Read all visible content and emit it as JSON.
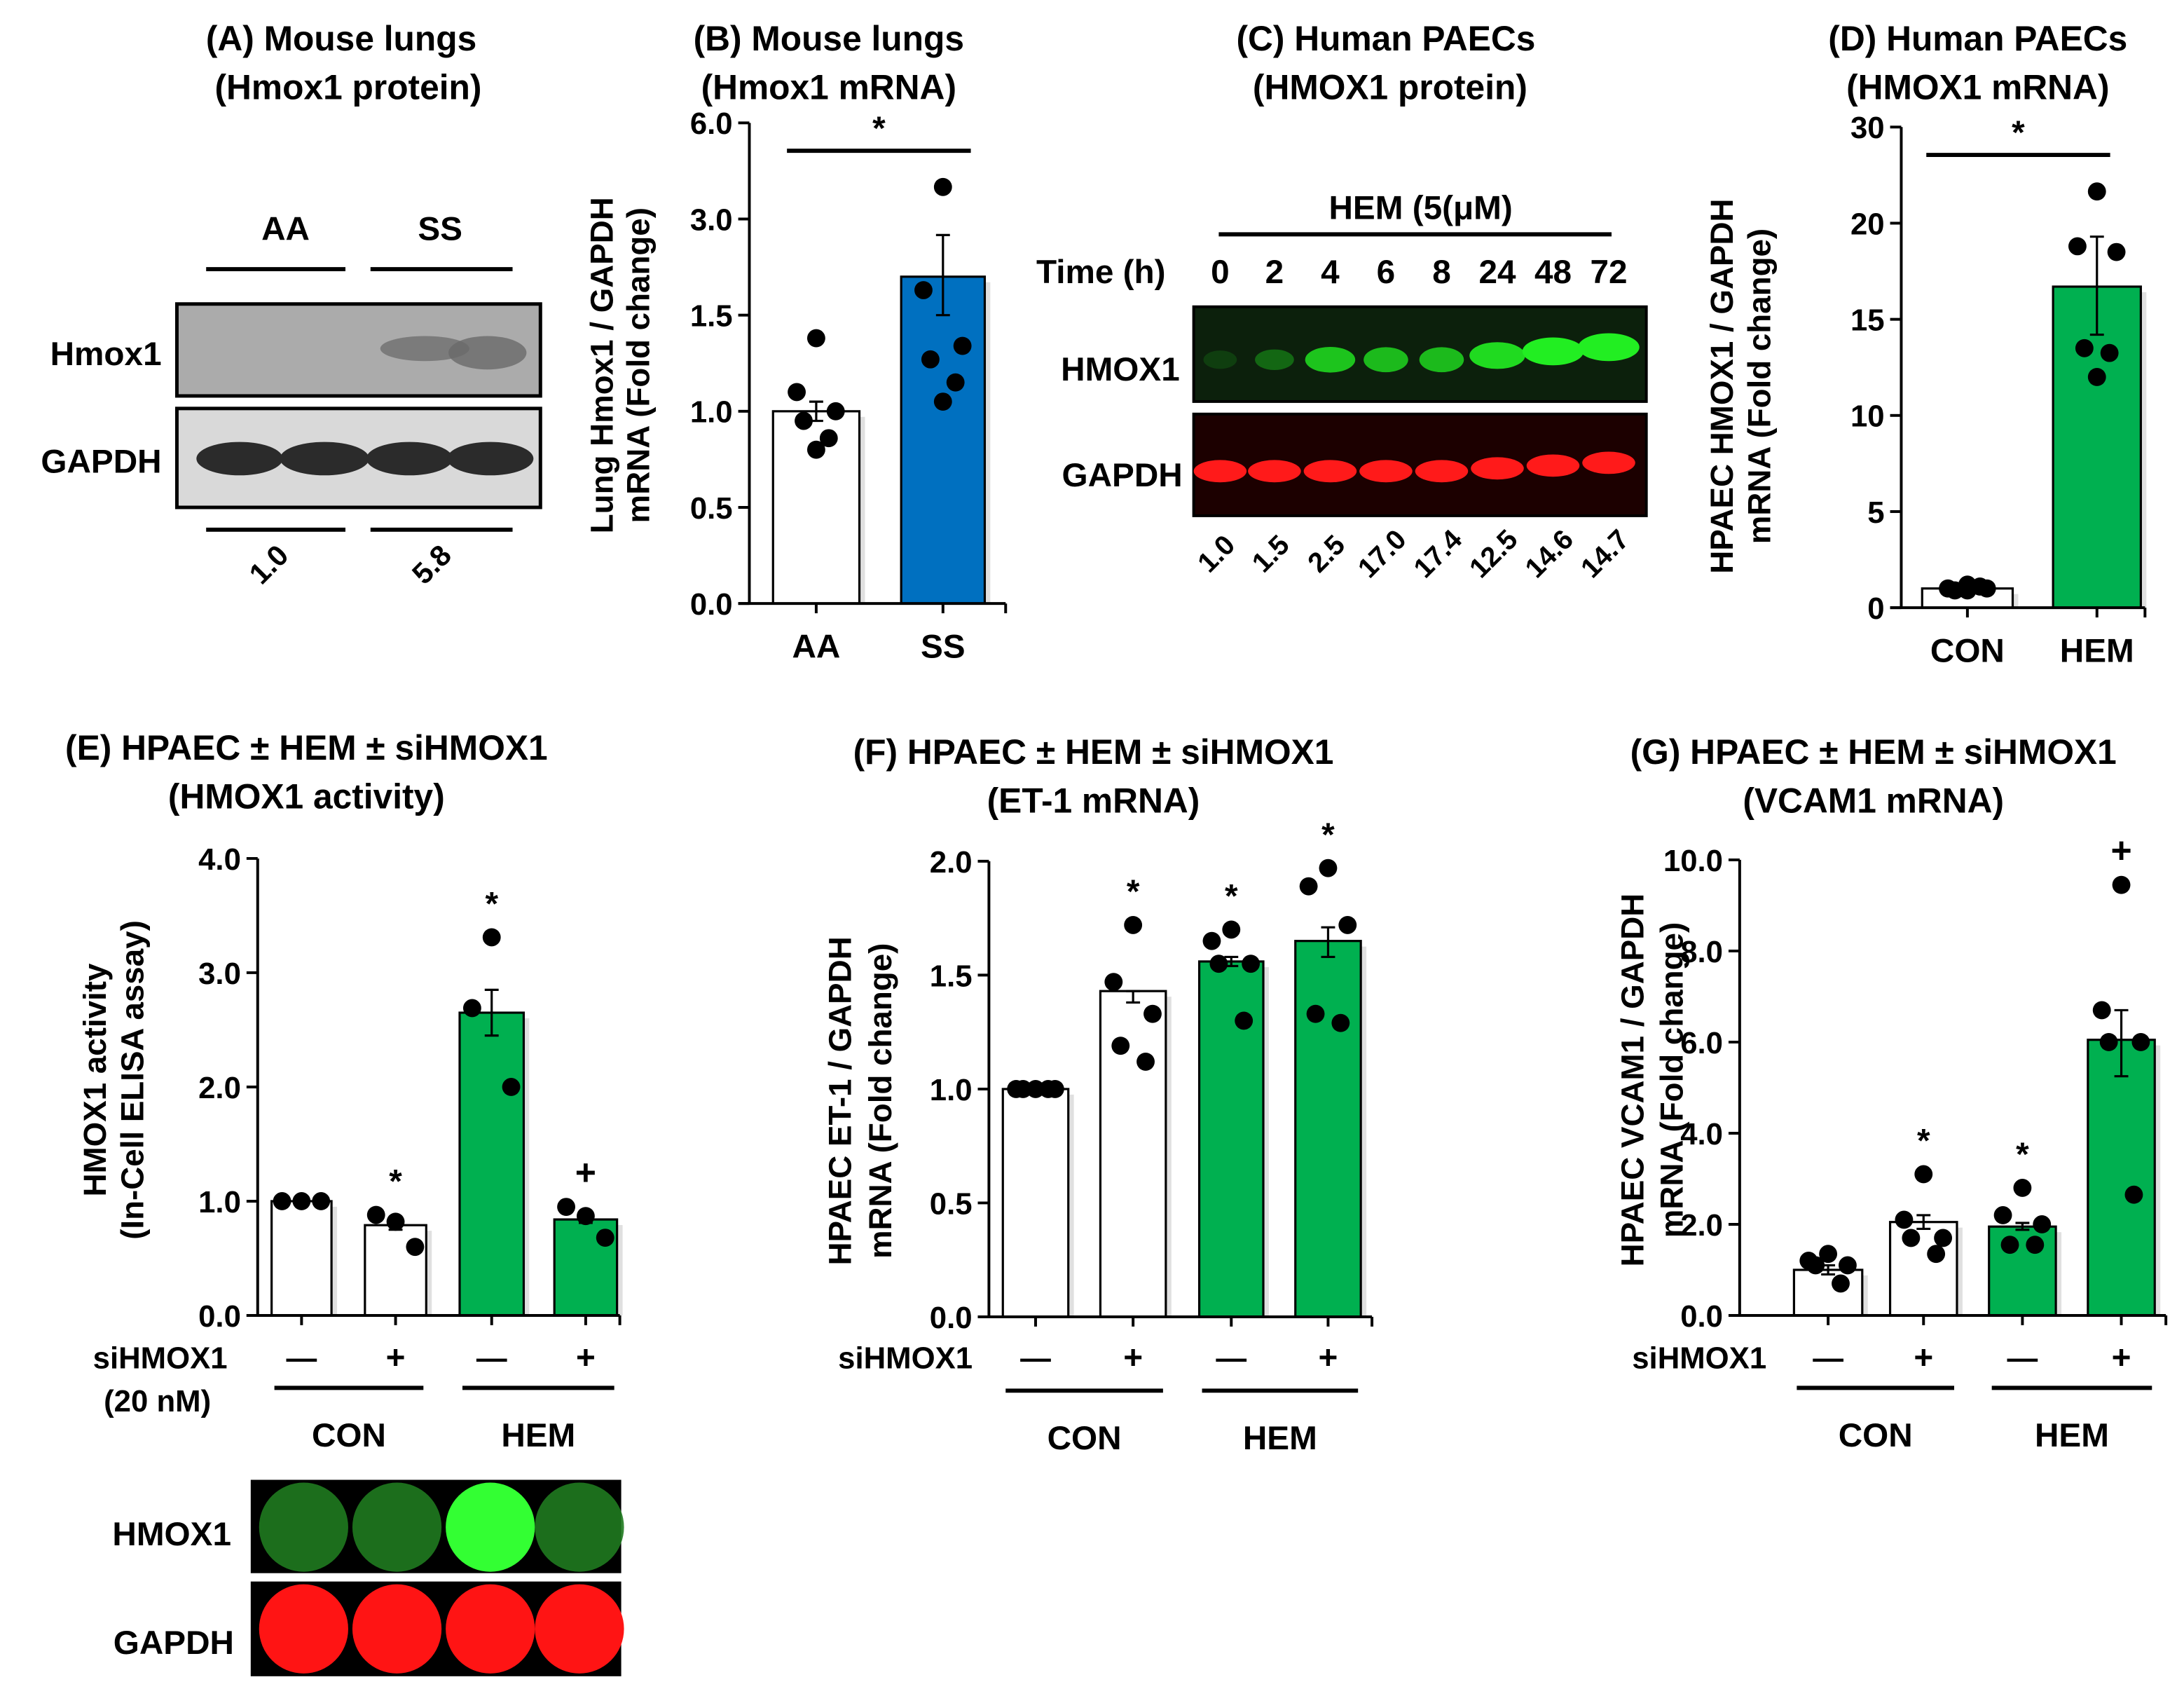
{
  "colors": {
    "white_bar": "#ffffff",
    "blue_bar": "#0070c0",
    "green_bar": "#00b050",
    "axis": "#000000",
    "point": "#000000"
  },
  "panels": {
    "A": {
      "title": "(A) Mouse lungs",
      "subtitle": "(Hmox1 protein)",
      "groups": [
        "AA",
        "SS"
      ],
      "rows": [
        "Hmox1",
        "GAPDH"
      ],
      "ratios": [
        "1.0",
        "5.8"
      ]
    },
    "C": {
      "title": "(C) Human PAECs",
      "subtitle": "(HMOX1 protein)",
      "treatment": "HEM  (5(μM)",
      "time_label": "Time (h)",
      "times": [
        "0",
        "2",
        "4",
        "6",
        "8",
        "24",
        "48",
        "72"
      ],
      "rows": [
        "HMOX1",
        "GAPDH"
      ],
      "ratios": [
        "1.0",
        "1.5",
        "2.5",
        "17.0",
        "17.4",
        "12.5",
        "14.6",
        "14.7"
      ]
    },
    "E_blot": {
      "rows": [
        "HMOX1",
        "GAPDH"
      ]
    }
  },
  "chart_data": [
    {
      "id": "B",
      "type": "bar",
      "title": "(B) Mouse lungs",
      "subtitle": "(Hmox1 mRNA)",
      "ylabel": [
        "Lung Hmox1 / GAPDH",
        "mRNA (Fold change)"
      ],
      "categories": [
        "AA",
        "SS"
      ],
      "values": [
        1.0,
        2.1
      ],
      "sem_range": [
        [
          0.95,
          1.05
        ],
        [
          1.5,
          2.75
        ]
      ],
      "points": [
        [
          1.38,
          1.1,
          1.0,
          0.95,
          0.86,
          0.8
        ],
        [
          4.0,
          1.89,
          1.34,
          1.27,
          1.15,
          1.05
        ]
      ],
      "bar_colors": [
        "#ffffff",
        "#0070c0"
      ],
      "y_ticks": [
        0,
        0.5,
        1.0,
        1.5,
        3.0,
        6.0
      ],
      "y_tick_labels": [
        "0.0",
        "0.5",
        "1.0",
        "1.5",
        "3.0",
        "6.0"
      ],
      "significance": {
        "label": "*",
        "between": [
          "AA",
          "SS"
        ]
      }
    },
    {
      "id": "D",
      "type": "bar",
      "title": "(D) Human PAECs",
      "subtitle": "(HMOX1 mRNA)",
      "ylabel": [
        "HPAEC HMOX1 / GAPDH",
        "mRNA (Fold change)"
      ],
      "categories": [
        "CON",
        "HEM"
      ],
      "values": [
        1.0,
        16.7
      ],
      "sem_range": [
        [
          0.9,
          1.1
        ],
        [
          14.2,
          19.3
        ]
      ],
      "points": [
        [
          1.2,
          1.0,
          1.0,
          0.9,
          1.1,
          0.9
        ],
        [
          23.3,
          18.8,
          18.5,
          13.5,
          13.25,
          12.0
        ]
      ],
      "bar_colors": [
        "#ffffff",
        "#00b050"
      ],
      "y_ticks": [
        0,
        5,
        10,
        15,
        20,
        30
      ],
      "y_tick_labels": [
        "0",
        "5",
        "10",
        "15",
        "20",
        "30"
      ],
      "significance": {
        "label": "*",
        "between": [
          "CON",
          "HEM"
        ]
      }
    },
    {
      "id": "E",
      "type": "bar",
      "title": "(E) HPAEC ± HEM ± siHMOX1",
      "subtitle": "(HMOX1 activity)",
      "ylabel": [
        "HMOX1 activity",
        "(In-Cell ELISA assay)"
      ],
      "treatment_label": "siHMOX1",
      "treatment_sublabel": "(20 nM)",
      "categories": [
        "—",
        "+",
        "—",
        "+"
      ],
      "groups": [
        {
          "label": "CON",
          "members": [
            0,
            1
          ]
        },
        {
          "label": "HEM",
          "members": [
            2,
            3
          ]
        }
      ],
      "values": [
        1.0,
        0.79,
        2.65,
        0.84
      ],
      "sem_range": [
        [
          1.0,
          1.0
        ],
        [
          0.75,
          0.83
        ],
        [
          2.45,
          2.85
        ],
        [
          0.81,
          0.88
        ]
      ],
      "points": [
        [
          1.0,
          1.0,
          1.0
        ],
        [
          0.82,
          0.88,
          0.6
        ],
        [
          3.31,
          2.69,
          2.0
        ],
        [
          0.87,
          0.95,
          0.68
        ]
      ],
      "annotations": [
        "",
        "*",
        "*",
        "+"
      ],
      "bar_colors": [
        "#ffffff",
        "#ffffff",
        "#00b050",
        "#00b050"
      ],
      "y_ticks": [
        0,
        1,
        2,
        3,
        4
      ],
      "y_tick_labels": [
        "0.0",
        "1.0",
        "2.0",
        "3.0",
        "4.0"
      ]
    },
    {
      "id": "F",
      "type": "bar",
      "title": "(F) HPAEC ± HEM ± siHMOX1",
      "subtitle": "(ET-1 mRNA)",
      "ylabel": [
        "HPAEC ET-1 / GAPDH",
        "mRNA (Fold change)"
      ],
      "treatment_label": "siHMOX1",
      "categories": [
        "—",
        "+",
        "—",
        "+"
      ],
      "groups": [
        {
          "label": "CON",
          "members": [
            0,
            1
          ]
        },
        {
          "label": "HEM",
          "members": [
            2,
            3
          ]
        }
      ],
      "values": [
        1.0,
        1.43,
        1.56,
        1.65
      ],
      "sem_range": [
        [
          1.0,
          1.0
        ],
        [
          1.38,
          1.43
        ],
        [
          1.54,
          1.58
        ],
        [
          1.58,
          1.71
        ]
      ],
      "points": [
        [
          1.0,
          1.0,
          1.0,
          1.0,
          1.0
        ],
        [
          1.72,
          1.47,
          1.33,
          1.19,
          1.12
        ],
        [
          1.7,
          1.65,
          1.55,
          1.55,
          1.3
        ],
        [
          1.97,
          1.89,
          1.72,
          1.33,
          1.29
        ]
      ],
      "annotations": [
        "",
        "*",
        "*",
        "*"
      ],
      "bar_colors": [
        "#ffffff",
        "#ffffff",
        "#00b050",
        "#00b050"
      ],
      "y_ticks": [
        0,
        0.5,
        1.0,
        1.5,
        2.0
      ],
      "y_tick_labels": [
        "0.0",
        "0.5",
        "1.0",
        "1.5",
        "2.0"
      ]
    },
    {
      "id": "G",
      "type": "bar",
      "title": "(G) HPAEC ± HEM ± siHMOX1",
      "subtitle": "(VCAM1 mRNA)",
      "ylabel": [
        "HPAEC VCAM1 / GAPDH",
        "mRNA (Fold change)"
      ],
      "treatment_label": "siHMOX1",
      "categories": [
        "—",
        "+",
        "—",
        "+"
      ],
      "groups": [
        {
          "label": "CON",
          "members": [
            0,
            1
          ]
        },
        {
          "label": "HEM",
          "members": [
            2,
            3
          ]
        }
      ],
      "values": [
        1.0,
        2.05,
        1.95,
        6.05
      ],
      "sem_range": [
        [
          0.9,
          1.1
        ],
        [
          1.9,
          2.2
        ],
        [
          1.88,
          2.03
        ],
        [
          5.25,
          6.7
        ]
      ],
      "points": [
        [
          1.35,
          1.2,
          1.1,
          1.1,
          0.7
        ],
        [
          3.1,
          2.1,
          1.7,
          1.7,
          1.35
        ],
        [
          2.8,
          2.2,
          2.0,
          1.55,
          1.55
        ],
        [
          9.45,
          6.7,
          6.0,
          6.0,
          2.65
        ]
      ],
      "annotations": [
        "",
        "*",
        "*",
        "+"
      ],
      "bar_colors": [
        "#ffffff",
        "#ffffff",
        "#00b050",
        "#00b050"
      ],
      "y_ticks": [
        0,
        2,
        4,
        6,
        8,
        10
      ],
      "y_tick_labels": [
        "0.0",
        "2.0",
        "4.0",
        "6.0",
        "8.0",
        "10.0"
      ]
    }
  ]
}
